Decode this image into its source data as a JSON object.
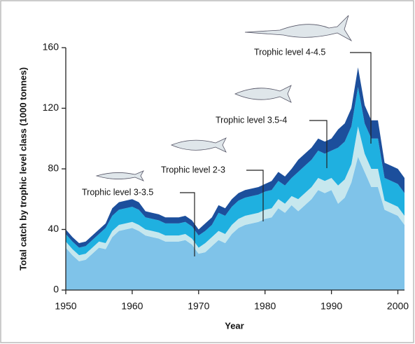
{
  "chart_data": {
    "type": "stacked-area",
    "x_label": "Year",
    "y_label": "Total catch by trophic level class (1000 tonnes)",
    "x": [
      1950,
      1951,
      1952,
      1953,
      1954,
      1955,
      1956,
      1957,
      1958,
      1959,
      1960,
      1961,
      1962,
      1963,
      1964,
      1965,
      1966,
      1967,
      1968,
      1969,
      1970,
      1971,
      1972,
      1973,
      1974,
      1975,
      1976,
      1977,
      1978,
      1979,
      1980,
      1981,
      1982,
      1983,
      1984,
      1985,
      1986,
      1987,
      1988,
      1989,
      1990,
      1991,
      1992,
      1993,
      1994,
      1995,
      1996,
      1997,
      1998,
      1999,
      2000,
      2001
    ],
    "series": [
      {
        "name": "Trophic level 3-3.5",
        "color": "#7fc3e9",
        "values": [
          28,
          23,
          19,
          20,
          24,
          28,
          27,
          35,
          39,
          40,
          41,
          39,
          36,
          35,
          34,
          32,
          32,
          32,
          33,
          30,
          24,
          25,
          29,
          33,
          31,
          37,
          41,
          43,
          44,
          45,
          47,
          48,
          54,
          51,
          56,
          52,
          56,
          60,
          66,
          64,
          66,
          57,
          61,
          71,
          88,
          78,
          68,
          68,
          53,
          51,
          49,
          43
        ]
      },
      {
        "name": "Trophic level 2-3",
        "color": "#c6e7ee",
        "values": [
          4,
          4,
          4,
          4,
          4,
          4,
          4,
          4,
          4,
          4,
          4,
          4,
          4,
          4,
          4,
          4,
          4,
          4,
          4,
          4,
          4,
          6,
          6,
          6,
          6,
          6,
          6,
          6,
          6,
          6,
          6,
          6,
          6,
          6,
          6,
          8,
          8,
          8,
          8,
          8,
          8,
          12,
          12,
          12,
          20,
          12,
          12,
          12,
          6,
          6,
          6,
          6
        ]
      },
      {
        "name": "Trophic level 3.5-4",
        "color": "#1fb0e0",
        "values": [
          5,
          5,
          5,
          5,
          5,
          5,
          10,
          10,
          10,
          10,
          10,
          10,
          8,
          8,
          8,
          8,
          8,
          8,
          8,
          8,
          8,
          8,
          8,
          12,
          12,
          12,
          12,
          12,
          12,
          12,
          12,
          12,
          12,
          12,
          12,
          18,
          18,
          18,
          18,
          18,
          18,
          25,
          25,
          25,
          26,
          20,
          20,
          20,
          15,
          15,
          15,
          15
        ]
      },
      {
        "name": "Trophic level 4-4.5",
        "color": "#1c4f9c",
        "values": [
          3,
          3,
          3,
          3,
          3,
          3,
          3,
          5,
          5,
          5,
          5,
          5,
          4,
          4,
          4,
          4,
          4,
          4,
          4,
          4,
          4,
          5,
          5,
          5,
          5,
          5,
          5,
          5,
          5,
          5,
          5,
          6,
          6,
          6,
          6,
          8,
          8,
          8,
          8,
          8,
          8,
          12,
          12,
          12,
          13,
          12,
          12,
          12,
          10,
          10,
          10,
          10
        ]
      }
    ],
    "xlim": [
      1950,
      2001
    ],
    "xticks": [
      1950,
      1960,
      1970,
      1980,
      1990,
      2000
    ],
    "ylim": [
      0,
      160
    ],
    "yticks": [
      0,
      40,
      80,
      120,
      160
    ]
  }
}
